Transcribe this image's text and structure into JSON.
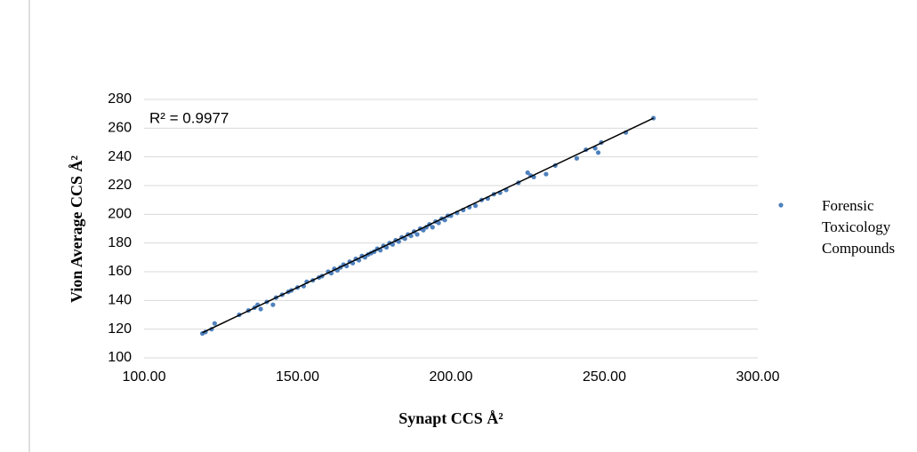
{
  "chart_data": {
    "type": "scatter",
    "x_label": "Synapt  CCS Å²",
    "y_label": "Vion  Average CCS Å²",
    "annotation": "R² = 0.9977",
    "xlim": [
      100,
      300
    ],
    "ylim": [
      100,
      280
    ],
    "xticks": [
      {
        "value": 100,
        "label": "100.00"
      },
      {
        "value": 150,
        "label": "150.00"
      },
      {
        "value": 200,
        "label": "200.00"
      },
      {
        "value": 250,
        "label": "250.00"
      },
      {
        "value": 300,
        "label": "300.00"
      }
    ],
    "yticks": [
      100,
      120,
      140,
      160,
      180,
      200,
      220,
      240,
      260,
      280
    ],
    "grid": true,
    "legend": "right",
    "series": [
      {
        "name": "Forensic Toxicology Compounds",
        "color": "#4f81bd",
        "x": [
          119,
          120,
          122,
          123,
          131,
          134,
          136,
          137,
          138,
          140,
          142,
          143,
          145,
          147,
          148,
          150,
          152,
          153,
          155,
          157,
          158,
          160,
          161,
          162,
          163,
          164,
          165,
          166,
          167,
          168,
          169,
          170,
          171,
          172,
          173,
          174,
          175,
          176,
          177,
          178,
          179,
          180,
          181,
          182,
          183,
          184,
          185,
          186,
          187,
          188,
          189,
          190,
          191,
          192,
          193,
          194,
          195,
          196,
          197,
          198,
          199,
          200,
          202,
          204,
          206,
          208,
          210,
          212,
          214,
          216,
          218,
          222,
          225,
          226,
          227,
          231,
          234,
          241,
          244,
          247,
          248,
          249,
          257,
          266
        ],
        "values": [
          117,
          118,
          120,
          124,
          130,
          133,
          135,
          137,
          134,
          139,
          137,
          142,
          144,
          146,
          147,
          149,
          150,
          153,
          154,
          156,
          157,
          160,
          159,
          162,
          161,
          163,
          165,
          164,
          167,
          166,
          169,
          168,
          171,
          170,
          172,
          173,
          174,
          176,
          175,
          178,
          177,
          180,
          179,
          182,
          181,
          184,
          183,
          186,
          185,
          188,
          186,
          190,
          189,
          191,
          193,
          191,
          195,
          194,
          197,
          196,
          199,
          199,
          201,
          203,
          205,
          206,
          210,
          211,
          214,
          215,
          217,
          222,
          229,
          227,
          226,
          228,
          234,
          239,
          245,
          246,
          243,
          250,
          257,
          267
        ]
      }
    ],
    "trendline": {
      "color": "#000000",
      "x": [
        119,
        266
      ],
      "values": [
        117.5,
        267
      ]
    }
  }
}
